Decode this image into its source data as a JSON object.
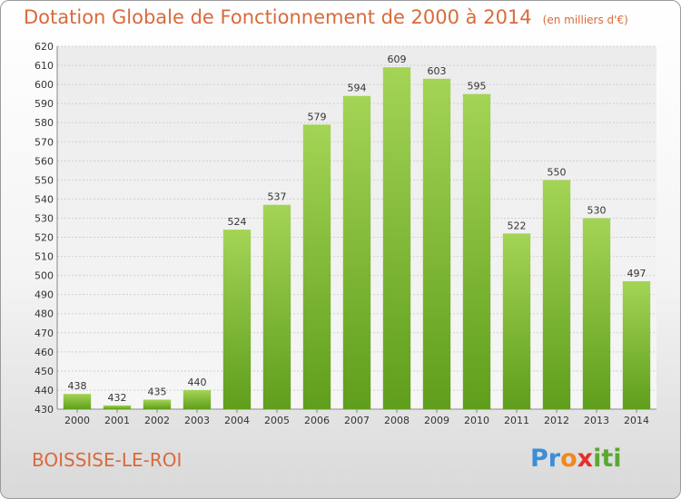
{
  "title": "Dotation Globale de Fonctionnement de 2000 à 2014",
  "unit": "(en milliers d'€)",
  "commune": "BOISSISE-LE-ROI",
  "logo": {
    "p1": "Pr",
    "p2": "o",
    "p3": "x",
    "p4": "iti"
  },
  "colors": {
    "bar_top": "#a4d455",
    "bar_bottom": "#5f9e1c",
    "title": "#d86a3c"
  },
  "chart_data": {
    "type": "bar",
    "categories": [
      "2000",
      "2001",
      "2002",
      "2003",
      "2004",
      "2005",
      "2006",
      "2007",
      "2008",
      "2009",
      "2010",
      "2011",
      "2012",
      "2013",
      "2014"
    ],
    "values": [
      438,
      432,
      435,
      440,
      524,
      537,
      579,
      594,
      609,
      603,
      595,
      522,
      550,
      530,
      497
    ],
    "ylim": [
      430,
      620
    ],
    "yticks": [
      430,
      440,
      450,
      460,
      470,
      480,
      490,
      500,
      510,
      520,
      530,
      540,
      550,
      560,
      570,
      580,
      590,
      600,
      610,
      620
    ],
    "grid": true
  }
}
